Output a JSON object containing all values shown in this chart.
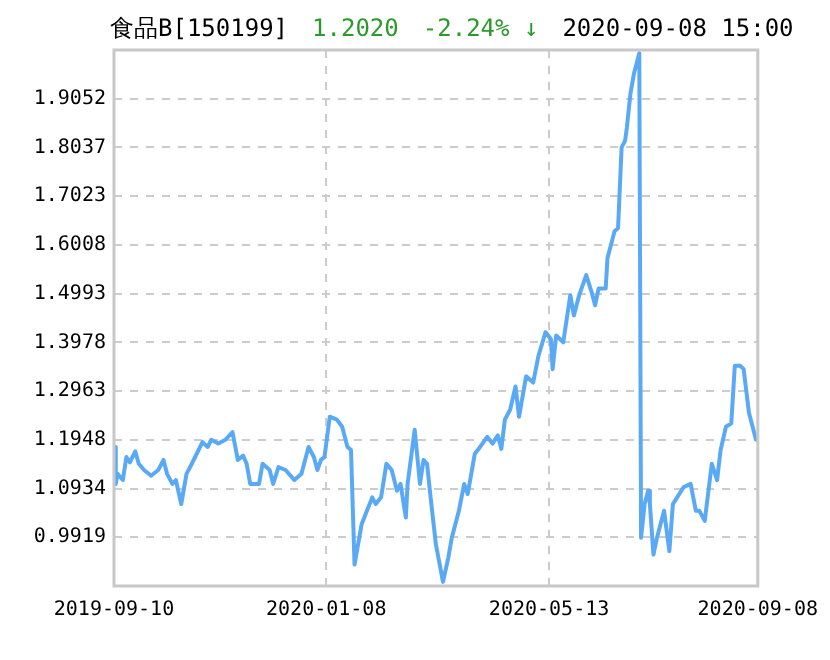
{
  "chart_data": {
    "type": "line",
    "title": "食品B[150199]",
    "annotations": [
      "1.2020",
      "-2.24% ↓",
      "2020-09-08 15:00"
    ],
    "x": [
      "2019-09-10",
      "2019-09-11",
      "2019-09-12",
      "2019-09-15",
      "2019-09-17",
      "2019-09-19",
      "2019-09-22",
      "2019-09-24",
      "2019-09-27",
      "2019-10-01",
      "2019-10-05",
      "2019-10-08",
      "2019-10-10",
      "2019-10-13",
      "2019-10-15",
      "2019-10-18",
      "2019-10-21",
      "2019-10-24",
      "2019-10-30",
      "2019-11-02",
      "2019-11-04",
      "2019-11-08",
      "2019-11-12",
      "2019-11-16",
      "2019-11-19",
      "2019-11-22",
      "2019-11-24",
      "2019-11-26",
      "2019-12-01",
      "2019-12-03",
      "2019-12-07",
      "2019-12-09",
      "2019-12-12",
      "2019-12-16",
      "2019-12-21",
      "2019-12-25",
      "2019-12-29",
      "2020-01-01",
      "2020-01-03",
      "2020-01-05",
      "2020-01-07",
      "2020-01-10",
      "2020-01-14",
      "2020-01-17",
      "2020-01-20",
      "2020-01-22",
      "2020-01-24",
      "2020-01-28",
      "2020-01-31",
      "2020-02-03",
      "2020-02-05",
      "2020-02-08",
      "2020-02-11",
      "2020-02-14",
      "2020-02-17",
      "2020-02-19",
      "2020-02-22",
      "2020-02-23",
      "2020-02-27",
      "2020-03-01",
      "2020-03-03",
      "2020-03-05",
      "2020-03-07",
      "2020-03-10",
      "2020-03-14",
      "2020-03-17",
      "2020-03-19",
      "2020-03-23",
      "2020-03-26",
      "2020-03-28",
      "2020-04-01",
      "2020-04-04",
      "2020-04-08",
      "2020-04-11",
      "2020-04-14",
      "2020-04-16",
      "2020-04-18",
      "2020-04-21",
      "2020-04-24",
      "2020-04-26",
      "2020-04-30",
      "2020-05-04",
      "2020-05-07",
      "2020-05-11",
      "2020-05-14",
      "2020-05-15",
      "2020-05-17",
      "2020-05-21",
      "2020-05-25",
      "2020-05-27",
      "2020-05-30",
      "2020-06-03",
      "2020-06-06",
      "2020-06-08",
      "2020-06-10",
      "2020-06-14",
      "2020-06-15",
      "2020-06-19",
      "2020-06-21",
      "2020-06-23",
      "2020-06-25",
      "2020-06-26",
      "2020-06-28",
      "2020-06-30",
      "2020-07-03",
      "2020-07-04",
      "2020-07-06",
      "2020-07-08",
      "2020-07-09",
      "2020-07-11",
      "2020-07-13",
      "2020-07-17",
      "2020-07-20",
      "2020-07-22",
      "2020-07-28",
      "2020-08-01",
      "2020-08-04",
      "2020-08-06",
      "2020-08-09",
      "2020-08-13",
      "2020-08-16",
      "2020-08-18",
      "2020-08-21",
      "2020-08-24",
      "2020-08-26",
      "2020-08-29",
      "2020-08-31",
      "2020-09-03",
      "2020-09-07",
      "2020-09-08"
    ],
    "series": [
      {
        "color": "#5aa9f5",
        "values": [
          1.18,
          1.103,
          1.124,
          1.111,
          1.159,
          1.148,
          1.171,
          1.145,
          1.132,
          1.12,
          1.132,
          1.153,
          1.124,
          1.103,
          1.111,
          1.061,
          1.124,
          1.145,
          1.19,
          1.18,
          1.195,
          1.187,
          1.195,
          1.211,
          1.153,
          1.162,
          1.145,
          1.103,
          1.103,
          1.145,
          1.132,
          1.103,
          1.138,
          1.132,
          1.111,
          1.124,
          1.18,
          1.159,
          1.132,
          1.153,
          1.159,
          1.243,
          1.237,
          1.222,
          1.18,
          1.174,
          0.935,
          1.019,
          1.047,
          1.075,
          1.061,
          1.075,
          1.145,
          1.132,
          1.089,
          1.103,
          1.033,
          1.103,
          1.216,
          1.103,
          1.153,
          1.145,
          1.075,
          0.977,
          0.899,
          0.949,
          0.991,
          1.047,
          1.103,
          1.082,
          1.166,
          1.18,
          1.201,
          1.187,
          1.204,
          1.176,
          1.237,
          1.258,
          1.306,
          1.243,
          1.327,
          1.314,
          1.37,
          1.419,
          1.405,
          1.342,
          1.412,
          1.398,
          1.496,
          1.454,
          1.496,
          1.538,
          1.503,
          1.475,
          1.51,
          1.51,
          1.573,
          1.629,
          1.636,
          1.804,
          1.818,
          1.846,
          1.916,
          1.958,
          2.0,
          0.991,
          1.061,
          1.089,
          1.061,
          0.956,
          0.991,
          1.047,
          0.963,
          1.061,
          1.096,
          1.103,
          1.047,
          1.047,
          1.026,
          1.145,
          1.111,
          1.174,
          1.222,
          1.229,
          1.349,
          1.349,
          1.342,
          1.251,
          1.195,
          1.202
        ]
      }
    ],
    "xlim": [
      "2019-09-10",
      "2020-09-08"
    ],
    "xticks": [
      "2019-09-10",
      "2020-01-08",
      "2020-05-13",
      "2020-09-08"
    ],
    "ylim": [
      0.8904,
      2.0067
    ],
    "yticks": [
      0.9919,
      1.0934,
      1.1948,
      1.2963,
      1.3978,
      1.4993,
      1.6008,
      1.7023,
      1.8037,
      1.9052
    ],
    "grid": true,
    "legend": false,
    "marker": "none",
    "line_style": "solid"
  }
}
